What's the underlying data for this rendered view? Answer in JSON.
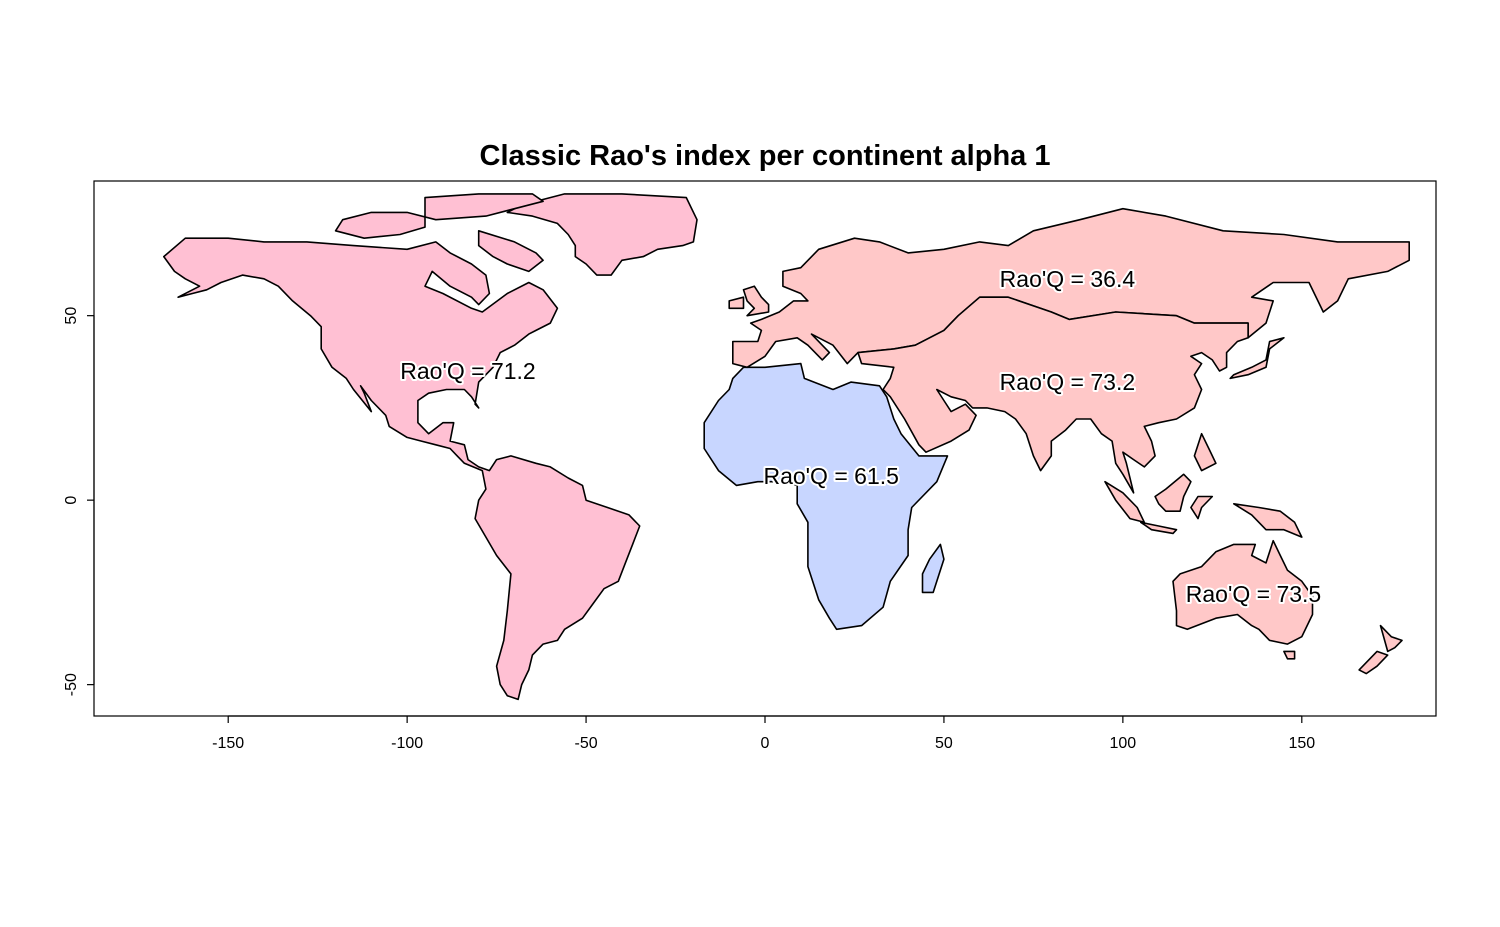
{
  "chart_data": {
    "type": "map",
    "title": "Classic Rao's index per continent alpha 1",
    "xlim": [
      -187.5,
      187.5
    ],
    "ylim": [
      -58.5,
      86.5
    ],
    "x_ticks": [
      -150,
      -100,
      -50,
      0,
      50,
      100,
      150
    ],
    "y_ticks": [
      -50,
      0,
      50
    ],
    "x_tick_labels": [
      "-150",
      "-100",
      "-50",
      "0",
      "50",
      "100",
      "150"
    ],
    "y_tick_labels": [
      "-50",
      "0",
      "50"
    ],
    "regions": [
      {
        "id": "americas",
        "color": "#ffc0d3",
        "label": "Rao'Q = 71.2",
        "label_lon": -83,
        "label_lat": 35
      },
      {
        "id": "africa",
        "color": "#c8d6ff",
        "label": "Rao'Q = 61.5",
        "label_lon": 18.5,
        "label_lat": 6.5
      },
      {
        "id": "europe",
        "color": "#ffc8c8",
        "label": "Rao'Q = 36.4",
        "label_lon": 84.5,
        "label_lat": 60
      },
      {
        "id": "asia",
        "color": "#ffc8c8",
        "label": "Rao'Q = 73.2",
        "label_lon": 84.5,
        "label_lat": 32
      },
      {
        "id": "oceania",
        "color": "#ffc8c8",
        "label": "Rao'Q = 73.5",
        "label_lon": 136.5,
        "label_lat": -25.5
      }
    ]
  }
}
